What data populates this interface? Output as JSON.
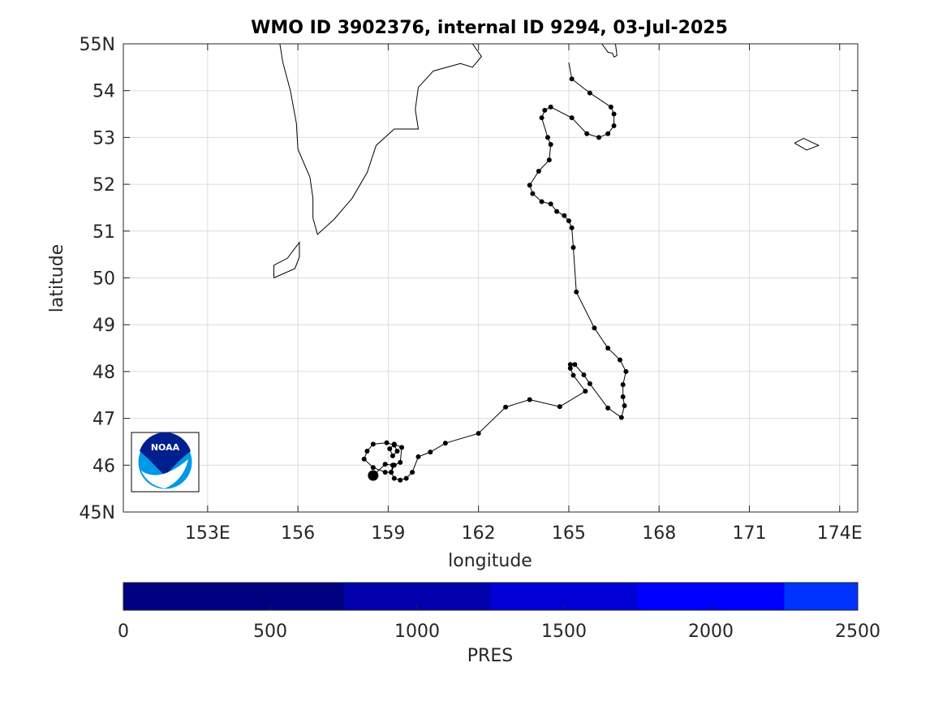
{
  "title": "WMO ID 3902376, internal ID 9294, 03-Jul-2025",
  "colors": {
    "track": "#000000",
    "coast": "#000000",
    "grid": "#dcdcdc",
    "noaa_dark": "#001f8f",
    "noaa_light": "#0099e5"
  },
  "chart_data": {
    "type": "scatter",
    "title": "WMO ID 3902376, internal ID 9294, 03-Jul-2025",
    "xlabel": "longitude",
    "ylabel": "latitude",
    "xlim": [
      150.2,
      174.6
    ],
    "ylim": [
      45,
      55
    ],
    "x_ticks": [
      153,
      156,
      159,
      162,
      165,
      168,
      171,
      174
    ],
    "x_tick_labels": [
      "153E",
      "156",
      "159",
      "162",
      "165",
      "168",
      "171",
      "174E"
    ],
    "y_ticks": [
      45,
      46,
      47,
      48,
      49,
      50,
      51,
      52,
      53,
      54,
      55
    ],
    "y_tick_labels": [
      "45N",
      "46",
      "47",
      "48",
      "49",
      "50",
      "51",
      "52",
      "53",
      "54",
      "55N"
    ],
    "grid": true,
    "track": [
      [
        165.0,
        54.6
      ],
      [
        165.1,
        54.25
      ],
      [
        165.7,
        53.95
      ],
      [
        166.4,
        53.65
      ],
      [
        166.5,
        53.5
      ],
      [
        166.5,
        53.25
      ],
      [
        166.3,
        53.08
      ],
      [
        166.0,
        53.0
      ],
      [
        165.6,
        53.08
      ],
      [
        165.1,
        53.42
      ],
      [
        164.4,
        53.65
      ],
      [
        164.2,
        53.58
      ],
      [
        164.1,
        53.42
      ],
      [
        164.3,
        53.0
      ],
      [
        164.4,
        52.85
      ],
      [
        164.35,
        52.52
      ],
      [
        164.0,
        52.28
      ],
      [
        163.7,
        51.98
      ],
      [
        163.8,
        51.8
      ],
      [
        164.1,
        51.63
      ],
      [
        164.4,
        51.58
      ],
      [
        164.6,
        51.42
      ],
      [
        164.85,
        51.33
      ],
      [
        165.0,
        51.22
      ],
      [
        165.1,
        51.07
      ],
      [
        165.15,
        50.65
      ],
      [
        165.25,
        49.7
      ],
      [
        165.85,
        48.93
      ],
      [
        166.3,
        48.5
      ],
      [
        166.7,
        48.25
      ],
      [
        166.9,
        48.0
      ],
      [
        166.8,
        47.72
      ],
      [
        166.8,
        47.46
      ],
      [
        166.85,
        47.27
      ],
      [
        166.75,
        47.02
      ],
      [
        166.3,
        47.22
      ],
      [
        165.7,
        47.74
      ],
      [
        165.5,
        47.93
      ],
      [
        165.2,
        48.15
      ],
      [
        165.05,
        48.15
      ],
      [
        165.05,
        48.07
      ],
      [
        165.15,
        47.92
      ],
      [
        165.55,
        47.58
      ],
      [
        164.7,
        47.25
      ],
      [
        163.7,
        47.4
      ],
      [
        162.9,
        47.24
      ],
      [
        162.0,
        46.68
      ],
      [
        160.9,
        46.47
      ],
      [
        160.4,
        46.28
      ],
      [
        160.0,
        46.18
      ],
      [
        159.8,
        45.85
      ],
      [
        159.6,
        45.72
      ],
      [
        159.4,
        45.68
      ],
      [
        159.2,
        45.72
      ],
      [
        159.1,
        45.85
      ],
      [
        159.2,
        46.0
      ],
      [
        159.4,
        46.06
      ],
      [
        159.45,
        46.38
      ],
      [
        159.2,
        46.45
      ],
      [
        159.05,
        46.35
      ],
      [
        159.15,
        46.2
      ],
      [
        159.3,
        46.3
      ],
      [
        159.2,
        46.43
      ],
      [
        158.95,
        46.48
      ],
      [
        158.5,
        46.45
      ],
      [
        158.3,
        46.3
      ],
      [
        158.2,
        46.13
      ],
      [
        158.5,
        45.95
      ],
      [
        158.9,
        45.85
      ],
      [
        159.1,
        45.85
      ],
      [
        159.15,
        46.0
      ],
      [
        158.9,
        46.02
      ],
      [
        158.5,
        45.78
      ]
    ],
    "last_position": [
      158.5,
      45.78
    ],
    "coastlines": [
      [
        [
          155.4,
          55.0
        ],
        [
          155.5,
          54.6
        ],
        [
          155.75,
          54.0
        ],
        [
          155.95,
          53.3
        ],
        [
          156.0,
          52.75
        ],
        [
          156.4,
          52.15
        ],
        [
          156.5,
          51.7
        ],
        [
          156.5,
          51.28
        ],
        [
          156.65,
          50.93
        ],
        [
          157.2,
          51.25
        ],
        [
          157.8,
          51.7
        ],
        [
          158.3,
          52.25
        ],
        [
          158.6,
          52.83
        ],
        [
          159.2,
          53.18
        ],
        [
          160.0,
          53.18
        ],
        [
          159.9,
          53.6
        ],
        [
          160.0,
          54.07
        ],
        [
          160.5,
          54.42
        ],
        [
          161.4,
          54.58
        ],
        [
          161.8,
          54.5
        ],
        [
          162.1,
          54.73
        ],
        [
          161.8,
          55.0
        ]
      ],
      [
        [
          155.2,
          50.0
        ],
        [
          155.2,
          50.27
        ],
        [
          155.65,
          50.42
        ],
        [
          156.05,
          50.76
        ],
        [
          156.05,
          50.45
        ],
        [
          155.9,
          50.2
        ],
        [
          155.2,
          50.0
        ]
      ],
      [
        [
          166.1,
          55.0
        ],
        [
          166.3,
          54.82
        ],
        [
          166.45,
          54.8
        ],
        [
          166.5,
          54.72
        ],
        [
          166.6,
          54.75
        ],
        [
          166.55,
          55.0
        ]
      ],
      [
        [
          172.5,
          52.88
        ],
        [
          172.8,
          52.98
        ],
        [
          173.3,
          52.83
        ],
        [
          172.9,
          52.73
        ],
        [
          172.5,
          52.88
        ]
      ]
    ],
    "colorbar": {
      "label": "PRES",
      "min": 0,
      "max": 2500,
      "ticks": [
        0,
        500,
        1000,
        1500,
        2000,
        2500
      ],
      "segments": [
        {
          "from": 0,
          "to": 750,
          "color": "#000080"
        },
        {
          "from": 750,
          "to": 1250,
          "color": "#0000ad"
        },
        {
          "from": 1250,
          "to": 1750,
          "color": "#0000d6"
        },
        {
          "from": 1750,
          "to": 2250,
          "color": "#0000ff"
        },
        {
          "from": 2250,
          "to": 2500,
          "color": "#0033ff"
        }
      ]
    }
  },
  "logo": {
    "text": "NOAA"
  }
}
